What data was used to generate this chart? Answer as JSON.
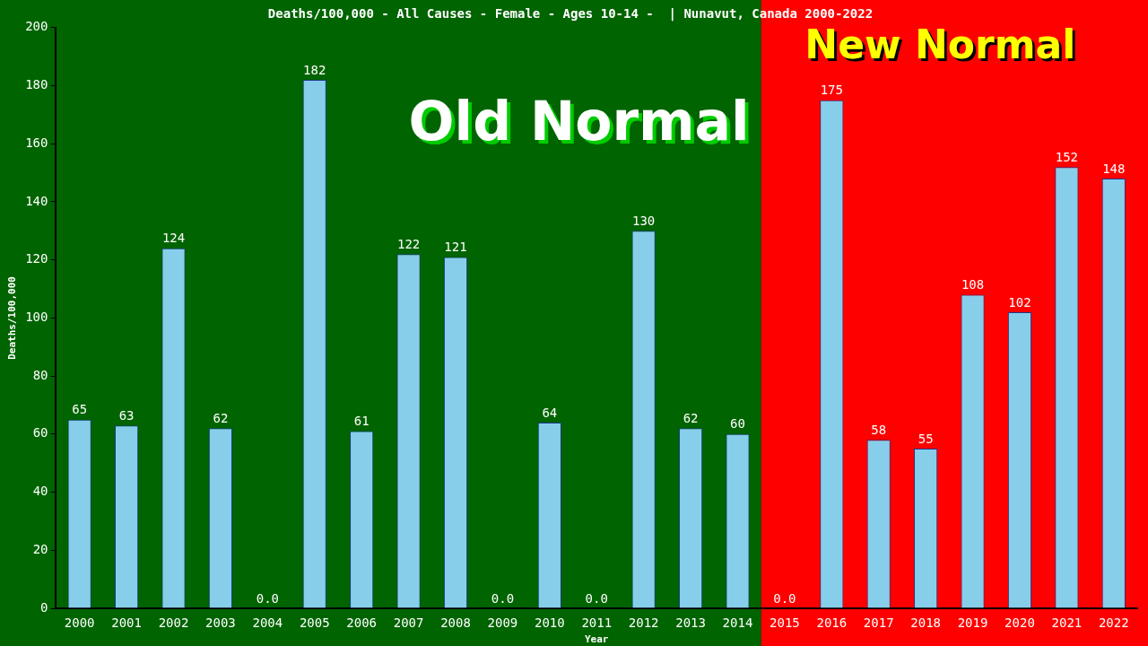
{
  "chart_data": {
    "type": "bar",
    "title": "Deaths/100,000 - All Causes - Female - Ages 10-14 -  | Nunavut, Canada 2000-2022",
    "xlabel": "Year",
    "ylabel": "Deaths/100,000",
    "categories": [
      "2000",
      "2001",
      "2002",
      "2003",
      "2004",
      "2005",
      "2006",
      "2007",
      "2008",
      "2009",
      "2010",
      "2011",
      "2012",
      "2013",
      "2014",
      "2015",
      "2016",
      "2017",
      "2018",
      "2019",
      "2020",
      "2021",
      "2022"
    ],
    "values": [
      65,
      63,
      124,
      62,
      0,
      182,
      61,
      122,
      121,
      0,
      64,
      0,
      130,
      62,
      60,
      0,
      175,
      58,
      55,
      108,
      102,
      152,
      148
    ],
    "value_labels": [
      "65",
      "63",
      "124",
      "62",
      "0.0",
      "182",
      "61",
      "122",
      "121",
      "0.0",
      "64",
      "0.0",
      "130",
      "62",
      "60",
      "0.0",
      "175",
      "58",
      "55",
      "108",
      "102",
      "152",
      "148"
    ],
    "color": "#87ceeb",
    "ylim": [
      0,
      200
    ],
    "yticks": [
      0,
      20,
      40,
      60,
      80,
      100,
      120,
      140,
      160,
      180,
      200
    ],
    "grid": false,
    "bands": [
      {
        "axis": "x",
        "from": "2000",
        "to": "2014",
        "label": "Old Normal",
        "color": "#006400"
      },
      {
        "axis": "x",
        "from": "2015",
        "to": "2022",
        "label": "New Normal",
        "color": "#ff0000"
      }
    ]
  }
}
